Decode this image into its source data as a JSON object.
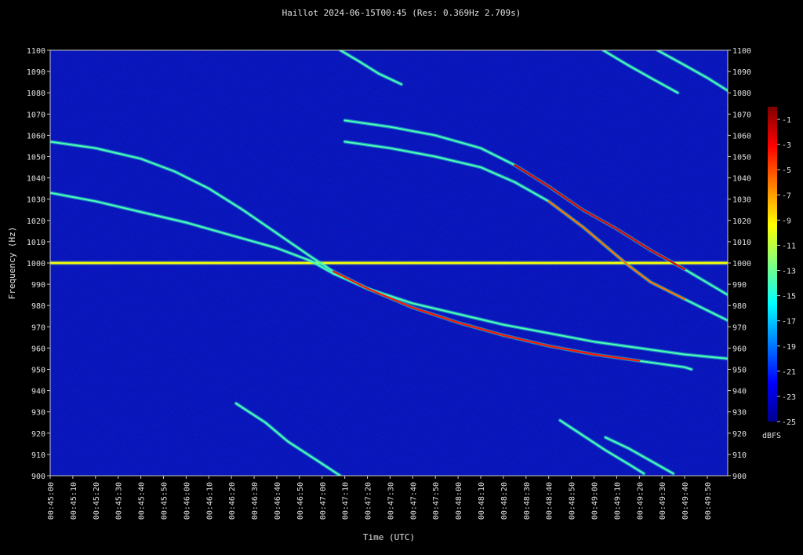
{
  "chart_data": {
    "type": "heatmap",
    "title": "Haillot 2024-06-15T00:45 (Res: 0.369Hz 2.709s)",
    "xlabel": "Time (UTC)",
    "ylabel": "Frequency (Hz)",
    "x_ticks": [
      "00:45:00",
      "00:45:10",
      "00:45:20",
      "00:45:30",
      "00:45:40",
      "00:45:50",
      "00:46:00",
      "00:46:10",
      "00:46:20",
      "00:46:30",
      "00:46:40",
      "00:46:50",
      "00:47:00",
      "00:47:10",
      "00:47:20",
      "00:47:30",
      "00:47:40",
      "00:47:50",
      "00:48:00",
      "00:48:10",
      "00:48:20",
      "00:48:30",
      "00:48:40",
      "00:48:50",
      "00:49:00",
      "00:49:10",
      "00:49:20",
      "00:49:30",
      "00:49:40",
      "00:49:50"
    ],
    "y_ticks": [
      900,
      910,
      920,
      930,
      940,
      950,
      960,
      970,
      980,
      990,
      1000,
      1010,
      1020,
      1030,
      1040,
      1050,
      1060,
      1070,
      1080,
      1090,
      1100
    ],
    "xlim_seconds": [
      0,
      299
    ],
    "ylim": [
      900,
      1100
    ],
    "colorbar": {
      "label": "dBFS",
      "range": [
        -25,
        0
      ],
      "ticks": [
        -1,
        -3,
        -5,
        -7,
        -9,
        -11,
        -13,
        -15,
        -17,
        -19,
        -21,
        -23,
        -25
      ]
    },
    "carrier_hz": 1000,
    "traces": [
      {
        "points": [
          [
            0,
            1033
          ],
          [
            20,
            1029
          ],
          [
            40,
            1024
          ],
          [
            60,
            1019
          ],
          [
            80,
            1013
          ],
          [
            100,
            1007
          ],
          [
            115,
            1001
          ],
          [
            125,
            995
          ],
          [
            140,
            988
          ],
          [
            160,
            981
          ],
          [
            180,
            976
          ],
          [
            200,
            971
          ],
          [
            220,
            967
          ],
          [
            240,
            963
          ],
          [
            260,
            960
          ],
          [
            280,
            957
          ],
          [
            299,
            955
          ]
        ],
        "peak": 0.35
      },
      {
        "points": [
          [
            0,
            1057
          ],
          [
            20,
            1054
          ],
          [
            40,
            1049
          ],
          [
            55,
            1043
          ],
          [
            70,
            1035
          ],
          [
            85,
            1025
          ],
          [
            100,
            1014
          ],
          [
            115,
            1003
          ],
          [
            125,
            996
          ],
          [
            140,
            988
          ],
          [
            160,
            979
          ],
          [
            180,
            972
          ],
          [
            200,
            966
          ],
          [
            220,
            961
          ],
          [
            240,
            957
          ],
          [
            260,
            954
          ],
          [
            280,
            951
          ],
          [
            283,
            950
          ]
        ],
        "peak": 0.95
      },
      {
        "points": [
          [
            130,
            1057
          ],
          [
            150,
            1054
          ],
          [
            170,
            1050
          ],
          [
            190,
            1045
          ],
          [
            205,
            1038
          ],
          [
            220,
            1029
          ],
          [
            235,
            1017
          ],
          [
            245,
            1008
          ],
          [
            255,
            999
          ],
          [
            265,
            991
          ],
          [
            280,
            983
          ],
          [
            299,
            973
          ]
        ],
        "peak": 0.85
      },
      {
        "points": [
          [
            130,
            1067
          ],
          [
            150,
            1064
          ],
          [
            170,
            1060
          ],
          [
            190,
            1054
          ],
          [
            205,
            1046
          ],
          [
            220,
            1036
          ],
          [
            235,
            1025
          ],
          [
            250,
            1016
          ],
          [
            265,
            1006
          ],
          [
            280,
            997
          ],
          [
            299,
            985
          ]
        ],
        "peak": 1.0
      },
      {
        "points": [
          [
            128,
            1100
          ],
          [
            136,
            1095
          ],
          [
            145,
            1089
          ],
          [
            155,
            1084
          ]
        ],
        "peak": 0.55
      },
      {
        "points": [
          [
            244,
            1100
          ],
          [
            255,
            1093
          ],
          [
            265,
            1087
          ],
          [
            277,
            1080
          ]
        ],
        "peak": 0.5
      },
      {
        "points": [
          [
            268,
            1100
          ],
          [
            280,
            1093
          ],
          [
            290,
            1087
          ],
          [
            299,
            1081
          ]
        ],
        "peak": 0.5
      },
      {
        "points": [
          [
            82,
            934
          ],
          [
            95,
            925
          ],
          [
            105,
            916
          ],
          [
            118,
            907
          ],
          [
            128,
            900
          ]
        ],
        "peak": 0.5
      },
      {
        "points": [
          [
            225,
            926
          ],
          [
            235,
            919
          ],
          [
            245,
            912
          ],
          [
            256,
            905
          ],
          [
            262,
            901
          ]
        ],
        "peak": 0.5
      },
      {
        "points": [
          [
            245,
            918
          ],
          [
            255,
            913
          ],
          [
            265,
            907
          ],
          [
            275,
            901
          ]
        ],
        "peak": 0.45
      }
    ]
  }
}
